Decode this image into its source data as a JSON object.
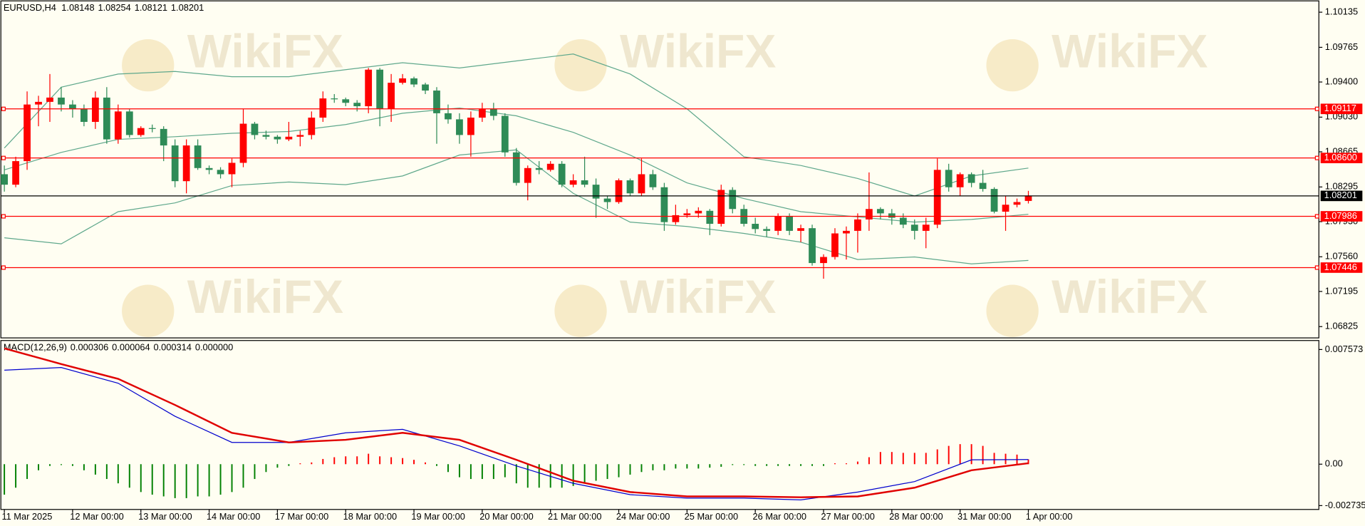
{
  "chart_data": [
    {
      "type": "candlestick",
      "title": "EURUSD,H4",
      "watermark": "WikiFX",
      "categories": [
        "11 Mar 2025",
        null,
        null,
        null,
        null,
        null,
        "12 Mar 00:00",
        null,
        null,
        null,
        null,
        null,
        "13 Mar 00:00",
        null,
        null,
        null,
        null,
        null,
        "14 Mar 00:00",
        null,
        null,
        null,
        null,
        null,
        "17 Mar 00:00",
        null,
        null,
        null,
        null,
        null,
        "18 Mar 00:00",
        null,
        null,
        null,
        null,
        null,
        "19 Mar 00:00",
        null,
        null,
        null,
        null,
        null,
        "20 Mar 00:00",
        null,
        null,
        null,
        null,
        null,
        "21 Mar 00:00",
        null,
        null,
        null,
        null,
        null,
        "24 Mar 00:00",
        null,
        null,
        null,
        null,
        null,
        "25 Mar 00:00",
        null,
        null,
        null,
        null,
        null,
        "26 Mar 00:00",
        null,
        null,
        null,
        null,
        null,
        "27 Mar 00:00",
        null,
        null,
        null,
        null,
        null,
        "28 Mar 00:00",
        null,
        null,
        null,
        null,
        null,
        "31 Mar 00:00",
        null,
        null,
        null,
        null,
        null,
        "1 Apr 00:00"
      ],
      "open": [
        1.08429,
        1.08319,
        1.08567,
        1.09163,
        1.09191,
        1.09236,
        1.09163,
        1.09117,
        1.0898,
        1.09236,
        1.08796,
        1.0909,
        1.08842,
        1.08915,
        1.08906,
        1.08732,
        1.08356,
        1.08732,
        1.08494,
        1.08475,
        1.08429,
        1.08549,
        1.08961,
        1.08842,
        1.08824,
        1.08796,
        1.08824,
        1.08842,
        1.09025,
        1.09227,
        1.09218,
        1.09181,
        1.09145,
        1.0953,
        1.09117,
        1.09392,
        1.09438,
        1.09374,
        1.0931,
        1.09071,
        1.09007,
        1.08842,
        1.09025,
        1.09117,
        1.09044,
        1.08659,
        1.08338,
        1.08494,
        1.08475,
        1.08539,
        1.08319,
        1.08365,
        1.08319,
        1.08173,
        1.08136,
        1.08365,
        1.08228,
        1.08429,
        1.08292,
        1.07925,
        1.07998,
        1.08017,
        1.08044,
        1.07907,
        1.08264,
        1.08063,
        1.07907,
        1.07852,
        1.07833,
        1.07989,
        1.07833,
        1.07861,
        1.07494,
        1.07558,
        1.07806,
        1.07833,
        1.07953,
        1.08063,
        1.08017,
        1.07971,
        1.07898,
        1.07833,
        1.07898,
        1.08475,
        1.08292,
        1.08429,
        1.08338,
        1.08274,
        1.08035,
        1.08108,
        1.08148
      ],
      "high": [
        1.08521,
        1.08613,
        1.09301,
        1.09255,
        1.09484,
        1.09346,
        1.09209,
        1.09163,
        1.09301,
        1.09346,
        1.09163,
        1.09117,
        1.08934,
        1.08952,
        1.08934,
        1.08796,
        1.08796,
        1.08796,
        1.08521,
        1.08503,
        1.08594,
        1.09117,
        1.0898,
        1.08888,
        1.08842,
        1.0898,
        1.08888,
        1.0909,
        1.09301,
        1.09273,
        1.09236,
        1.09209,
        1.09548,
        1.09548,
        1.09484,
        1.09484,
        1.09456,
        1.09392,
        1.09346,
        1.09163,
        1.09071,
        1.0909,
        1.09181,
        1.09181,
        1.09071,
        1.08705,
        1.08521,
        1.08567,
        1.08567,
        1.08567,
        1.08429,
        1.08613,
        1.08384,
        1.082,
        1.08384,
        1.08384,
        1.08594,
        1.08475,
        1.08338,
        1.08108,
        1.08063,
        1.08081,
        1.08063,
        1.08319,
        1.08292,
        1.08108,
        1.07971,
        1.07879,
        1.08017,
        1.08017,
        1.07898,
        1.07898,
        1.07586,
        1.07861,
        1.07879,
        1.08017,
        1.08448,
        1.08081,
        1.08063,
        1.08017,
        1.07953,
        1.07971,
        1.08594,
        1.08539,
        1.08448,
        1.08448,
        1.08475,
        1.08292,
        1.082,
        1.08173,
        1.08254
      ],
      "low": [
        1.08246,
        1.08292,
        1.08475,
        1.08934,
        1.0898,
        1.0909,
        1.09025,
        1.08934,
        1.08906,
        1.0875,
        1.0875,
        1.08815,
        1.08824,
        1.0887,
        1.08567,
        1.08292,
        1.08228,
        1.08475,
        1.08429,
        1.08384,
        1.08292,
        1.08503,
        1.08796,
        1.08796,
        1.0875,
        1.08778,
        1.08723,
        1.08796,
        1.0898,
        1.09181,
        1.09145,
        1.0909,
        1.09071,
        1.08934,
        1.0898,
        1.09374,
        1.09346,
        1.09273,
        1.0875,
        1.08961,
        1.0875,
        1.08613,
        1.0898,
        1.08998,
        1.08613,
        1.0831,
        1.08154,
        1.08429,
        1.08457,
        1.08292,
        1.08292,
        1.08292,
        1.07971,
        1.08063,
        1.08118,
        1.082,
        1.082,
        1.08264,
        1.07833,
        1.07898,
        1.07971,
        1.07971,
        1.07788,
        1.07879,
        1.08017,
        1.07879,
        1.07806,
        1.07769,
        1.07788,
        1.07788,
        1.07714,
        1.07467,
        1.07329,
        1.07531,
        1.07531,
        1.07604,
        1.07833,
        1.07953,
        1.07898,
        1.07861,
        1.07742,
        1.0765,
        1.07861,
        1.08246,
        1.082,
        1.08292,
        1.08246,
        1.08017,
        1.07833,
        1.08081,
        1.08121
      ],
      "close": [
        1.08319,
        1.08567,
        1.09163,
        1.09191,
        1.09236,
        1.09163,
        1.09117,
        1.0898,
        1.09236,
        1.08796,
        1.0909,
        1.08842,
        1.08915,
        1.08906,
        1.08732,
        1.08356,
        1.08732,
        1.08494,
        1.08475,
        1.08429,
        1.08549,
        1.08961,
        1.08842,
        1.08824,
        1.08796,
        1.08824,
        1.08842,
        1.09025,
        1.09227,
        1.09218,
        1.09181,
        1.09145,
        1.0953,
        1.09117,
        1.09392,
        1.09438,
        1.09374,
        1.0931,
        1.09071,
        1.09007,
        1.08842,
        1.09025,
        1.09117,
        1.09044,
        1.08659,
        1.08338,
        1.08494,
        1.08475,
        1.08539,
        1.08319,
        1.08365,
        1.08319,
        1.08173,
        1.08136,
        1.08365,
        1.08228,
        1.08429,
        1.08292,
        1.07925,
        1.07998,
        1.08017,
        1.08044,
        1.07907,
        1.08264,
        1.08063,
        1.07907,
        1.07852,
        1.07833,
        1.07989,
        1.07833,
        1.07861,
        1.07494,
        1.07558,
        1.07806,
        1.07833,
        1.07953,
        1.08063,
        1.08017,
        1.07971,
        1.07898,
        1.07833,
        1.07898,
        1.08475,
        1.08292,
        1.08429,
        1.08338,
        1.08274,
        1.08035,
        1.08108,
        1.08136,
        1.08201
      ],
      "up_color": "#ff0000",
      "down_color": "#2e8b57",
      "bands": {
        "color": "#5fa88c",
        "x": [
          0,
          5,
          10,
          15,
          20,
          25,
          30,
          35,
          40,
          45,
          50,
          55,
          60,
          65,
          70,
          75,
          80,
          85,
          90
        ],
        "upper": [
          1.08705,
          1.09346,
          1.09484,
          1.09511,
          1.09456,
          1.09456,
          1.0953,
          1.09603,
          1.09548,
          1.09622,
          1.09695,
          1.09484,
          1.09117,
          1.08613,
          1.08521,
          1.08384,
          1.082,
          1.08411,
          1.08494
        ],
        "middle": [
          1.08475,
          1.08659,
          1.08796,
          1.08824,
          1.0886,
          1.08879,
          1.08952,
          1.09071,
          1.09126,
          1.09044,
          1.0887,
          1.08631,
          1.08338,
          1.08173,
          1.08035,
          1.0798,
          1.07925,
          1.07953,
          1.08008
        ],
        "lower": [
          1.0776,
          1.07696,
          1.08035,
          1.08127,
          1.0831,
          1.08347,
          1.08319,
          1.08411,
          1.08631,
          1.08686,
          1.08228,
          1.07925,
          1.07879,
          1.07806,
          1.07714,
          1.07531,
          1.07558,
          1.07485,
          1.07522
        ]
      },
      "levels": [
        1.09117,
        {
          "value": 1.086,
          "label": "1.08600"
        },
        1.07986,
        1.07446
      ],
      "level_color": "#ff0000",
      "last_price_color": "#000000",
      "ylim": [
        1.06706,
        1.10245
      ],
      "yticks": [
        1.10135,
        1.09765,
        {
          "value": 1.094,
          "label": "1.09400"
        },
        {
          "value": 1.0903,
          "label": "1.09030"
        },
        1.08665,
        1.08295,
        {
          "value": 1.0793,
          "label": "1.07930"
        },
        {
          "value": 1.0756,
          "label": "1.07560"
        },
        1.07195,
        1.06825
      ]
    },
    {
      "type": "macd",
      "title": "MACD(12,26,9)",
      "header_values": [
        0.000306,
        6.4e-05,
        0.000314,
        {
          "value": 0,
          "label": "0.000000"
        }
      ],
      "histogram": [
        -0.002013,
        -0.001553,
        -0.000978,
        -0.000403,
        -0.000115,
        -5.8e-05,
        -0.000115,
        -0.000403,
        -0.00069,
        -0.000978,
        -0.001265,
        -0.001553,
        -0.00184,
        -0.002013,
        -0.002128,
        -0.002243,
        -0.002243,
        -0.002128,
        -0.002128,
        -0.002013,
        -0.00184,
        -0.001553,
        -0.000978,
        -0.000518,
        -0.00023,
        -0.000115,
        0,
        0.000115,
        0.000345,
        0.00046,
        0.000518,
        0.000518,
        0.00069,
        0.000518,
        0.00046,
        0.000403,
        0.000288,
        0.000115,
        -0.000115,
        -0.000518,
        -0.000863,
        -0.000978,
        -0.000978,
        -0.000978,
        -0.000863,
        -0.001265,
        -0.001553,
        -0.001553,
        -0.001553,
        -0.001553,
        -0.001438,
        -0.001265,
        -0.001093,
        -0.000978,
        -0.000863,
        -0.00069,
        -0.000518,
        -0.000403,
        -0.000403,
        -0.000288,
        -0.000288,
        -0.000288,
        -0.00023,
        -0.000173,
        -5.8e-05,
        -5.8e-05,
        -0.000115,
        -0.000115,
        -0.000115,
        -0.000115,
        -0.000115,
        -0.000115,
        -0.000115,
        0,
        0,
        0.000173,
        0.00046,
        0.000805,
        0.000805,
        0.000748,
        0.000748,
        0.000748,
        0.000978,
        0.001208,
        0.001323,
        0.001323,
        0.001208,
        0.000748,
        0.00069,
        0.000633,
        0.000314
      ],
      "histogram_up_color": "#ff0000",
      "histogram_down_color": "#008000",
      "macd": {
        "color": "#0000cd",
        "x": [
          0,
          5,
          10,
          15,
          20,
          25,
          30,
          35,
          40,
          45,
          50,
          55,
          60,
          65,
          70,
          75,
          80,
          85,
          90
        ],
        "values": [
          0.00621,
          0.006383,
          0.005348,
          0.003163,
          0.001438,
          0.001438,
          0.00207,
          0.0023,
          0.001208,
          -0.000115,
          -0.001265,
          -0.002013,
          -0.002243,
          -0.002243,
          -0.002358,
          -0.00184,
          -0.00115,
          0.000288,
          0.000306
        ]
      },
      "signal": {
        "color": "#e00000",
        "x": [
          0,
          5,
          10,
          15,
          20,
          25,
          30,
          35,
          40,
          45,
          50,
          55,
          60,
          65,
          70,
          75,
          80,
          85,
          90
        ],
        "values": [
          0.007648,
          0.006613,
          0.005635,
          0.00391,
          0.00207,
          0.001438,
          0.00161,
          0.00207,
          0.00161,
          0.000288,
          -0.001093,
          -0.00184,
          -0.002128,
          -0.002128,
          -0.002185,
          -0.002128,
          -0.001553,
          -0.000403,
          6.4e-05
        ]
      },
      "ylim": [
        -0.00299,
        0.00811
      ],
      "yticks": [
        0.007573,
        {
          "value": 0,
          "label": "0.00"
        },
        -0.002735
      ]
    }
  ]
}
